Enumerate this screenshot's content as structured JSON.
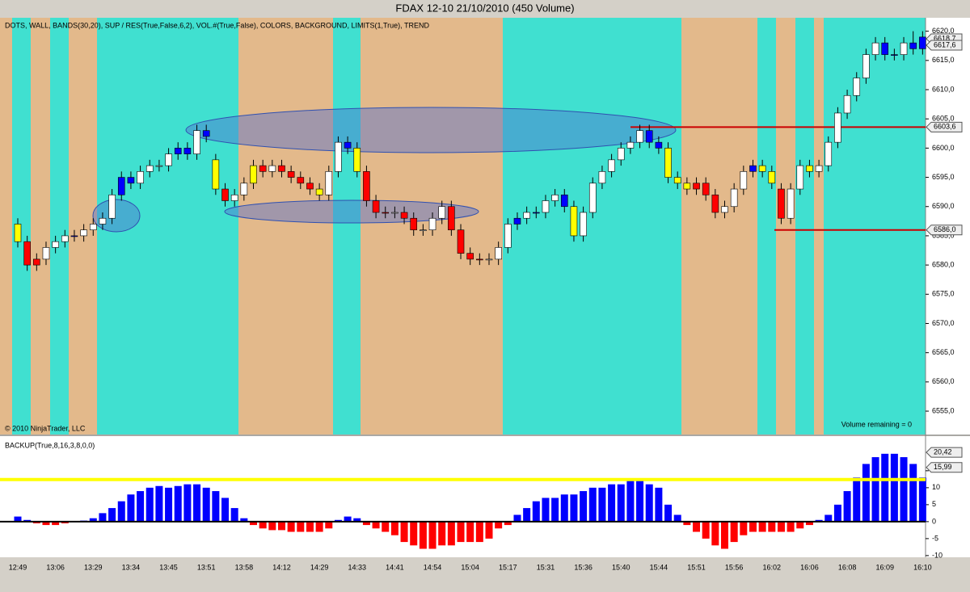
{
  "chart_data": [
    {
      "type": "candlestick",
      "title": "FDAX 12-10  21/10/2010 (450 Volume)",
      "subtitle": "DOTS, WALL, BANDS(30,20), SUP / RES(True,False,6,2), VOL.#(True,False), COLORS, BACKGROUND, LIMITS(1,True), TREND",
      "annotations": [
        "© 2010 NinjaTrader, LLC",
        "Volume remaining = 0"
      ],
      "categories": [
        "12:49",
        null,
        null,
        null,
        "13:06",
        null,
        null,
        null,
        "13:29",
        null,
        null,
        null,
        "13:34",
        null,
        null,
        null,
        "13:45",
        null,
        null,
        null,
        "13:51",
        null,
        null,
        null,
        "13:58",
        null,
        null,
        null,
        "14:12",
        null,
        null,
        null,
        "14:29",
        null,
        null,
        null,
        "14:33",
        null,
        null,
        null,
        "14:41",
        null,
        null,
        null,
        "14:54",
        null,
        null,
        null,
        "15:04",
        null,
        null,
        null,
        "15:17",
        null,
        null,
        null,
        "15:31",
        null,
        null,
        null,
        "15:36",
        null,
        null,
        null,
        "15:40",
        null,
        null,
        null,
        "15:44",
        null,
        null,
        null,
        "15:51",
        null,
        null,
        null,
        "15:56",
        null,
        null,
        null,
        "16:02",
        null,
        null,
        null,
        "16:06",
        null,
        null,
        null,
        "16:08",
        null,
        null,
        null,
        "16:09",
        null,
        null,
        null,
        "16:10"
      ],
      "open": [
        6587,
        6584,
        6580,
        6581,
        6583,
        6584,
        6585,
        6585,
        6586,
        6587,
        6588,
        6592,
        6595,
        6594,
        6596,
        6597,
        6597,
        6599,
        6600,
        6599,
        6603,
        6598,
        6593,
        6591,
        6592,
        6594,
        6597,
        6596,
        6597,
        6596,
        6595,
        6594,
        6593,
        6592,
        6596,
        6601,
        6600,
        6596,
        6591,
        6589,
        6589,
        6589,
        6588,
        6586,
        6586,
        6588,
        6590,
        6586,
        6582,
        6581,
        6581,
        6581,
        6583,
        6587,
        6588,
        6589,
        6589,
        6591,
        6592,
        6590,
        6585,
        6589,
        6594,
        6596,
        6598,
        6600,
        6601,
        6603,
        6601,
        6600,
        6595,
        6594,
        6593,
        6594,
        6592,
        6589,
        6590,
        6593,
        6596,
        6597,
        6596,
        6593,
        6588,
        6593,
        6597,
        6596,
        6597,
        6601,
        6606,
        6609,
        6612,
        6616,
        6618,
        6616,
        6616,
        6618,
        6619
      ],
      "high": [
        6588,
        6585,
        6582,
        6584,
        6585,
        6586,
        6586,
        6587,
        6588,
        6589,
        6593,
        6596,
        6596,
        6597,
        6598,
        6598,
        6600,
        6601,
        6601,
        6604,
        6604,
        6599,
        6594,
        6593,
        6595,
        6598,
        6598,
        6598,
        6598,
        6597,
        6596,
        6595,
        6594,
        6597,
        6602,
        6602,
        6601,
        6597,
        6592,
        6590,
        6590,
        6590,
        6589,
        6587,
        6589,
        6591,
        6591,
        6587,
        6583,
        6582,
        6582,
        6584,
        6588,
        6589,
        6590,
        6590,
        6592,
        6593,
        6593,
        6591,
        6590,
        6595,
        6597,
        6599,
        6601,
        6602,
        6604,
        6604,
        6602,
        6601,
        6596,
        6595,
        6595,
        6595,
        6593,
        6591,
        6594,
        6597,
        6598,
        6598,
        6597,
        6594,
        6594,
        6598,
        6598,
        6598,
        6602,
        6607,
        6610,
        6613,
        6617,
        6619,
        6619,
        6617,
        6619,
        6620,
        6620
      ],
      "low": [
        6583,
        6579,
        6579,
        6580,
        6582,
        6583,
        6584,
        6584,
        6585,
        6586,
        6587,
        6591,
        6593,
        6593,
        6595,
        6596,
        6596,
        6598,
        6598,
        6598,
        6601,
        6592,
        6590,
        6590,
        6591,
        6593,
        6595,
        6595,
        6595,
        6594,
        6593,
        6592,
        6591,
        6591,
        6595,
        6599,
        6595,
        6590,
        6588,
        6588,
        6588,
        6587,
        6585,
        6585,
        6585,
        6587,
        6585,
        6581,
        6580,
        6580,
        6580,
        6580,
        6582,
        6586,
        6587,
        6588,
        6588,
        6590,
        6589,
        6584,
        6584,
        6588,
        6593,
        6595,
        6597,
        6599,
        6600,
        6600,
        6599,
        6594,
        6593,
        6592,
        6592,
        6591,
        6588,
        6588,
        6589,
        6592,
        6595,
        6595,
        6593,
        6587,
        6587,
        6592,
        6595,
        6595,
        6596,
        6600,
        6605,
        6608,
        6611,
        6615,
        6615,
        6615,
        6615,
        6616,
        6616
      ],
      "close": [
        6584,
        6580,
        6581,
        6583,
        6584,
        6585,
        6585,
        6586,
        6587,
        6588,
        6592,
        6595,
        6594,
        6596,
        6597,
        6597,
        6599,
        6600,
        6599,
        6603,
        6602,
        6593,
        6591,
        6592,
        6594,
        6597,
        6596,
        6597,
        6596,
        6595,
        6594,
        6593,
        6592,
        6596,
        6601,
        6600,
        6596,
        6591,
        6589,
        6589,
        6589,
        6588,
        6586,
        6586,
        6588,
        6590,
        6586,
        6582,
        6581,
        6581,
        6581,
        6583,
        6587,
        6588,
        6589,
        6589,
        6591,
        6592,
        6590,
        6585,
        6589,
        6594,
        6596,
        6598,
        6600,
        6601,
        6603,
        6601,
        6600,
        6595,
        6594,
        6593,
        6594,
        6592,
        6589,
        6590,
        6593,
        6596,
        6597,
        6596,
        6594,
        6588,
        6593,
        6597,
        6596,
        6597,
        6601,
        6606,
        6609,
        6612,
        6616,
        6618,
        6616,
        6616,
        6618,
        6617,
        6617
      ],
      "colors": [
        "#ff0",
        "#f00",
        "#f00",
        "#fff",
        "#fff",
        "#fff",
        "#00f",
        "#fff",
        "#fff",
        "#fff",
        "#fff",
        "#00f",
        "#00f",
        "#fff",
        "#fff",
        "#fff",
        "#fff",
        "#00f",
        "#00f",
        "#fff",
        "#00f",
        "#ff0",
        "#f00",
        "#fff",
        "#fff",
        "#ff0",
        "#f00",
        "#fff",
        "#f00",
        "#f00",
        "#f00",
        "#f00",
        "#ff0",
        "#fff",
        "#fff",
        "#00f",
        "#ff0",
        "#f00",
        "#f00",
        "#f00",
        "#fff",
        "#f00",
        "#f00",
        "#fff",
        "#fff",
        "#fff",
        "#f00",
        "#f00",
        "#f00",
        "#f00",
        "#fff",
        "#fff",
        "#fff",
        "#00f",
        "#fff",
        "#00f",
        "#fff",
        "#fff",
        "#00f",
        "#ff0",
        "#fff",
        "#fff",
        "#fff",
        "#fff",
        "#fff",
        "#fff",
        "#fff",
        "#00f",
        "#00f",
        "#ff0",
        "#ff0",
        "#ff0",
        "#f00",
        "#f00",
        "#f00",
        "#fff",
        "#fff",
        "#fff",
        "#00f",
        "#ff0",
        "#ff0",
        "#f00",
        "#fff",
        "#fff",
        "#ff0",
        "#fff",
        "#fff",
        "#fff",
        "#fff",
        "#fff",
        "#fff",
        "#fff",
        "#00f",
        "#00f",
        "#fff",
        "#00f",
        "#00f"
      ],
      "ylim": [
        6551,
        6622.3
      ],
      "yticks": [
        {
          "value": 6620,
          "label": "6620,0"
        },
        {
          "value": 6615,
          "label": "6615,0"
        },
        {
          "value": 6610,
          "label": "6610,0"
        },
        {
          "value": 6605,
          "label": "6605,0"
        },
        {
          "value": 6600,
          "label": "6600,0"
        },
        {
          "value": 6595,
          "label": "6595,0"
        },
        {
          "value": 6590,
          "label": "6590,0"
        },
        {
          "value": 6585,
          "label": "6585,0"
        },
        {
          "value": 6580,
          "label": "6580,0"
        },
        {
          "value": 6575,
          "label": "6575,0"
        },
        {
          "value": 6570,
          "label": "6570,0"
        },
        {
          "value": 6565,
          "label": "6565,0"
        },
        {
          "value": 6560,
          "label": "6560,0"
        },
        {
          "value": 6555,
          "label": "6555,0"
        }
      ],
      "markers": [
        {
          "value": 6618.7,
          "label": "6618,7"
        },
        {
          "value": 6617.6,
          "label": "6617,6"
        },
        {
          "value": 6603.6,
          "label": "6603,6"
        },
        {
          "value": 6586.0,
          "label": "6586,0"
        }
      ],
      "line_color": "#cc0000"
    },
    {
      "type": "bar",
      "title": "BACKUP(True,8,16,3,8,0,0)",
      "values": [
        1.5,
        0.5,
        -0.5,
        -1,
        -1,
        -0.5,
        0,
        0.3,
        1,
        2.5,
        4,
        6,
        8,
        9,
        10,
        10.5,
        10,
        10.5,
        11,
        11,
        10,
        9,
        7,
        4,
        1,
        -1,
        -2,
        -2.5,
        -2.5,
        -3,
        -3,
        -3,
        -3,
        -2,
        0.5,
        1.5,
        1,
        -1,
        -2,
        -3,
        -4,
        -6,
        -7,
        -8,
        -8,
        -7,
        -7,
        -6,
        -6,
        -6,
        -5,
        -2,
        -1,
        2,
        4,
        6,
        7,
        7,
        8,
        8,
        9,
        10,
        10,
        11,
        11,
        12,
        12,
        11,
        10,
        5,
        2,
        -1,
        -3,
        -5,
        -7,
        -8,
        -6,
        -4,
        -3,
        -3,
        -3,
        -3,
        -3,
        -2,
        -1,
        0.5,
        2,
        5,
        9,
        13,
        17,
        19,
        20,
        20,
        19,
        17,
        13
      ],
      "pos_color": "#0000ff",
      "neg_color": "#ff0000",
      "threshold": 12.4,
      "threshold_color": "#ffff00",
      "ylim": [
        -10.5,
        25.2
      ],
      "yticks": [
        15,
        10,
        5,
        0,
        -5,
        -10
      ],
      "markers": [
        {
          "value": 20.42,
          "label": "20,42"
        },
        {
          "value": 15.99,
          "label": "15,99"
        }
      ]
    }
  ]
}
